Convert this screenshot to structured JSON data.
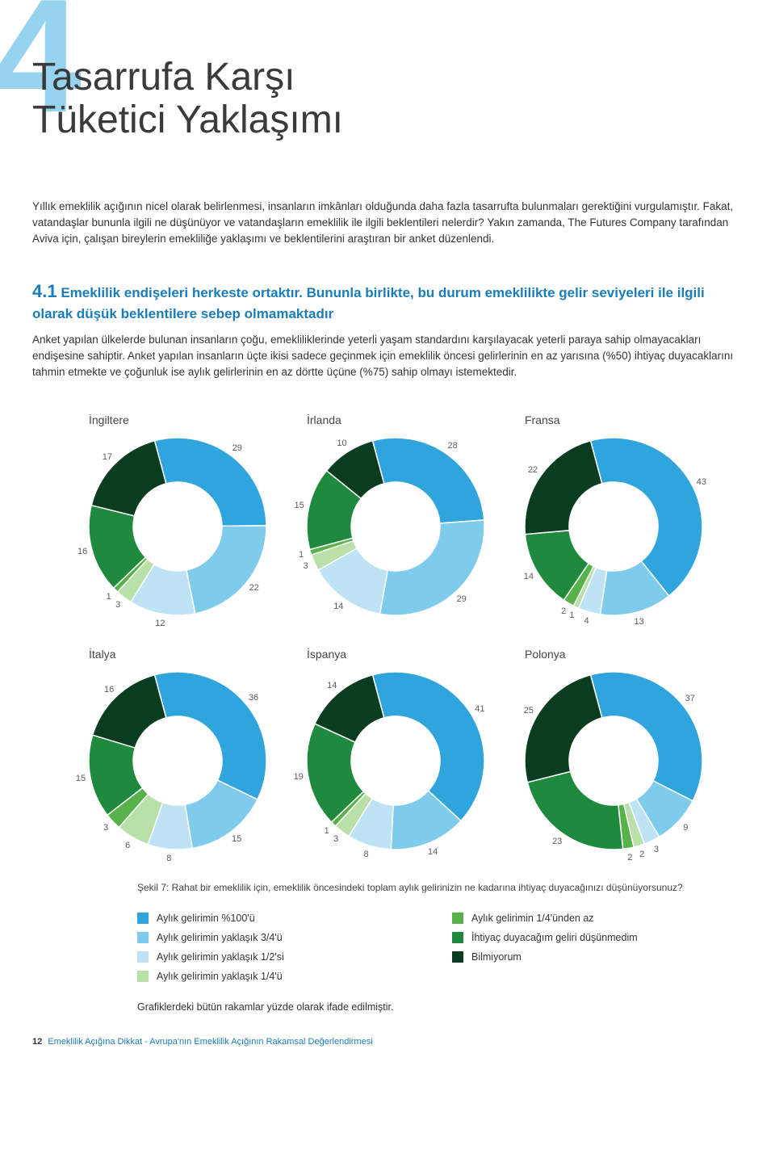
{
  "chapter_number": "4",
  "title_line1": "Tasarrufa Karşı",
  "title_line2": "Tüketici Yaklaşımı",
  "intro": "Yıllık emeklilik açığının nicel olarak belirlenmesi, insanların imkânları olduğunda daha fazla tasarrufta bulunmaları gerektiğini vurgulamıştır. Fakat, vatandaşlar bununla ilgili ne düşünüyor ve vatandaşların emeklilik ile ilgili beklentileri nelerdir? Yakın zamanda, The Futures Company tarafından Aviva için, çalışan bireylerin emekliliğe yaklaşımı ve beklentilerini araştıran bir anket düzenlendi.",
  "section_number": "4.1",
  "section_head": " Emeklilik endişeleri herkeste ortaktır. Bununla birlikte, bu durum emeklilikte gelir seviyeleri ile ilgili olarak düşük beklentilere sebep olmamaktadır",
  "section_body": "Anket yapılan ülkelerde bulunan insanların çoğu, emekliliklerinde yeterli yaşam standardını karşılayacak yeterli paraya sahip olmayacakları endişesine sahiptir. Anket yapılan insanların üçte ikisi sadece geçinmek için emeklilik öncesi gelirlerinin en az yarısına (%50) ihtiyaç duyacaklarını tahmin etmekte ve çoğunluk ise aylık gelirlerinin en az dörtte üçüne (%75) sahip olmayı istemektedir.",
  "colors": {
    "c100": "#30a5dd",
    "c75": "#7fcbec",
    "c50": "#bde3f5",
    "c25": "#b9e0a8",
    "cless": "#58b24a",
    "cnone": "#1f8a3d",
    "cdk": "#0a3d1f",
    "bg": "#ffffff",
    "text": "#5a5a5a"
  },
  "segment_order": [
    "c100",
    "c75",
    "c50",
    "c25",
    "cless",
    "cnone",
    "cdk"
  ],
  "charts": [
    {
      "title": "İngiltere",
      "values": {
        "c100": 29,
        "c75": 22,
        "c50": 12,
        "c25": 3,
        "cless": 1,
        "cnone": 16,
        "cdk": 17
      }
    },
    {
      "title": "İrlanda",
      "values": {
        "c100": 28,
        "c75": 29,
        "c50": 14,
        "c25": 3,
        "cless": 1,
        "cnone": 15,
        "cdk": 10
      }
    },
    {
      "title": "Fransa",
      "values": {
        "c100": 43,
        "c75": 13,
        "c50": 4,
        "c25": 1,
        "cless": 2,
        "cnone": 14,
        "cdk": 22
      }
    },
    {
      "title": "İtalya",
      "values": {
        "c100": 36,
        "c75": 15,
        "c50": 8,
        "c25": 6,
        "cless": 3,
        "cnone": 15,
        "cdk": 16
      }
    },
    {
      "title": "İspanya",
      "values": {
        "c100": 41,
        "c75": 14,
        "c50": 8,
        "c25": 3,
        "cless": 1,
        "cnone": 19,
        "cdk": 14
      }
    },
    {
      "title": "Polonya",
      "values": {
        "c100": 37,
        "c75": 9,
        "c50": 3,
        "c25": 2,
        "cless": 2,
        "cnone": 23,
        "cdk": 25
      }
    }
  ],
  "donut": {
    "inner_r": 0.5,
    "outer_r": 1.0,
    "start_angle_deg": -15
  },
  "caption": "Şekil 7: Rahat bir emeklilik için, emeklilik öncesindeki toplam aylık gelirinizin ne kadarına ihtiyaç duyacağınızı düşünüyorsunuz?",
  "legend": [
    {
      "key": "c100",
      "label": "Aylık gelirimin %100'ü"
    },
    {
      "key": "cless",
      "label": "Aylık gelirimin 1/4'ünden az"
    },
    {
      "key": "c75",
      "label": "Aylık gelirimin yaklaşık 3/4'ü"
    },
    {
      "key": "cnone",
      "label": "İhtiyaç duyacağım geliri düşünmedim"
    },
    {
      "key": "c50",
      "label": "Aylık gelirimin yaklaşık 1/2'si"
    },
    {
      "key": "cdk",
      "label": "Bilmiyorum"
    },
    {
      "key": "c25",
      "label": "Aylık gelirimin yaklaşık 1/4'ü"
    }
  ],
  "note": "Grafiklerdeki bütün rakamlar yüzde olarak ifade edilmiştir.",
  "footer_page": "12",
  "footer_text": "Emeklilik Açığına Dikkat - Avrupa'nın Emeklilik Açığının Rakamsal Değerlendirmesi"
}
